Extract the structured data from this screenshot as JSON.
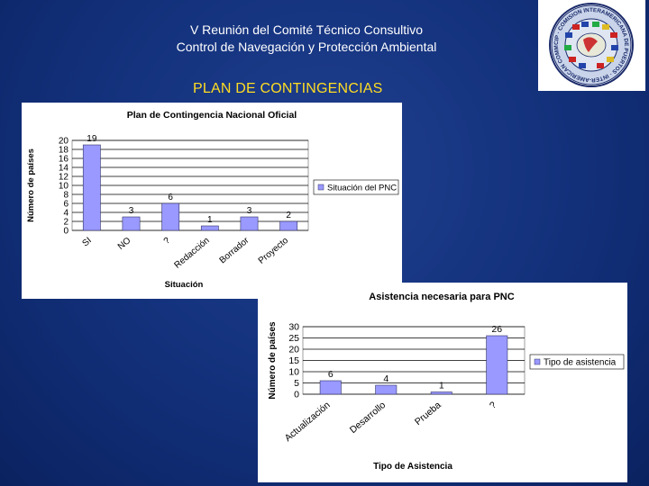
{
  "header": {
    "line1": "V Reunión del Comité Técnico Consultivo",
    "line2": "Control de Navegación y Protección Ambiental",
    "section_title": "PLAN DE CONTINGENCIAS"
  },
  "logo": {
    "icon": "cip-oas-seal-logo",
    "text": "CIP · COMISION INTERAMERICANA DE PUERTOS · INTER-AMERICAN COMMITTEE ON PORTS"
  },
  "colors": {
    "background": "#12307a",
    "title_text": "#ffffff",
    "subtitle_text": "#ffdd22",
    "bar_fill": "#9999ff",
    "bar_stroke": "#333366",
    "plot_bg": "#ffffff",
    "gridline": "#000000"
  },
  "chart_data": [
    {
      "type": "bar",
      "title": "Plan de Contingencia Nacional Oficial",
      "xlabel": "Situación",
      "ylabel": "Número de países",
      "categories": [
        "SI",
        "NO",
        "?",
        "Redacción",
        "Borrador",
        "Proyecto"
      ],
      "series": [
        {
          "name": "Situación del PNC",
          "values": [
            19,
            3,
            6,
            1,
            3,
            2
          ]
        }
      ],
      "data_labels": [
        "19",
        "3",
        "6",
        "1",
        "3",
        "2"
      ],
      "ylim": [
        0,
        20
      ],
      "yticks": [
        0,
        2,
        4,
        6,
        8,
        10,
        12,
        14,
        16,
        18,
        20
      ],
      "ytick_labels": [
        "0",
        "2",
        "4",
        "6",
        "8",
        "10",
        "12",
        "14",
        "16",
        "18",
        "20"
      ],
      "grid": "horizontal",
      "legend_position": "right"
    },
    {
      "type": "bar",
      "title": "Asistencia necesaria para PNC",
      "xlabel": "Tipo de Asistencia",
      "ylabel": "Número de países",
      "categories": [
        "Actualización",
        "Desarrollo",
        "Prueba",
        "?"
      ],
      "series": [
        {
          "name": "Tipo de asistencia",
          "values": [
            6,
            4,
            1,
            26
          ]
        }
      ],
      "data_labels": [
        "6",
        "4",
        "1",
        "26"
      ],
      "ylim": [
        0,
        30
      ],
      "yticks": [
        0,
        5,
        10,
        15,
        20,
        25,
        30
      ],
      "ytick_labels": [
        "0",
        "5",
        "10",
        "15",
        "20",
        "25",
        "30"
      ],
      "grid": "horizontal",
      "legend_position": "right"
    }
  ]
}
